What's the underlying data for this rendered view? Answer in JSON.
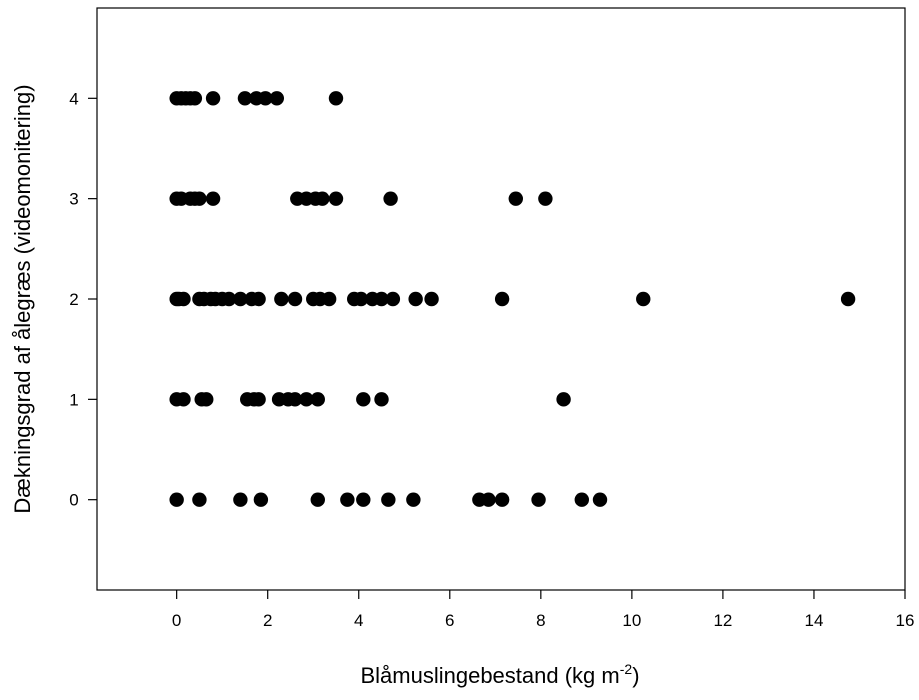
{
  "chart_data": {
    "type": "scatter",
    "title": "",
    "xlabel": "Blåmuslingebestand (kg m",
    "xlabel_sup": "-2",
    "xlabel_suffix": ")",
    "ylabel": "Dækningsgrad af ålegræs (videomonitering)",
    "xlim": [
      -1.75,
      16
    ],
    "ylim": [
      -0.9,
      4.9
    ],
    "xticks": [
      0,
      2,
      4,
      6,
      8,
      10,
      12,
      14,
      16
    ],
    "yticks": [
      0,
      1,
      2,
      3,
      4
    ],
    "grid": false,
    "legend": "none",
    "marker_color": "#000000",
    "series": [
      {
        "points": [
          [
            0.0,
            4
          ],
          [
            0.1,
            4
          ],
          [
            0.2,
            4
          ],
          [
            0.3,
            4
          ],
          [
            0.4,
            4
          ],
          [
            0.8,
            4
          ],
          [
            1.5,
            4
          ],
          [
            1.75,
            4
          ],
          [
            1.95,
            4
          ],
          [
            2.2,
            4
          ],
          [
            3.5,
            4
          ],
          [
            0.0,
            3
          ],
          [
            0.1,
            3
          ],
          [
            0.3,
            3
          ],
          [
            0.4,
            3
          ],
          [
            0.5,
            3
          ],
          [
            0.8,
            3
          ],
          [
            2.65,
            3
          ],
          [
            2.85,
            3
          ],
          [
            3.05,
            3
          ],
          [
            3.2,
            3
          ],
          [
            3.5,
            3
          ],
          [
            4.7,
            3
          ],
          [
            7.45,
            3
          ],
          [
            8.1,
            3
          ],
          [
            0.0,
            2
          ],
          [
            0.05,
            2
          ],
          [
            0.15,
            2
          ],
          [
            0.5,
            2
          ],
          [
            0.6,
            2
          ],
          [
            0.75,
            2
          ],
          [
            0.85,
            2
          ],
          [
            1.0,
            2
          ],
          [
            1.15,
            2
          ],
          [
            1.4,
            2
          ],
          [
            1.65,
            2
          ],
          [
            1.8,
            2
          ],
          [
            2.3,
            2
          ],
          [
            2.6,
            2
          ],
          [
            3.0,
            2
          ],
          [
            3.15,
            2
          ],
          [
            3.35,
            2
          ],
          [
            3.9,
            2
          ],
          [
            4.05,
            2
          ],
          [
            4.3,
            2
          ],
          [
            4.5,
            2
          ],
          [
            4.75,
            2
          ],
          [
            5.25,
            2
          ],
          [
            5.6,
            2
          ],
          [
            7.15,
            2
          ],
          [
            10.25,
            2
          ],
          [
            14.75,
            2
          ],
          [
            0.0,
            1
          ],
          [
            0.15,
            1
          ],
          [
            0.55,
            1
          ],
          [
            0.65,
            1
          ],
          [
            1.55,
            1
          ],
          [
            1.7,
            1
          ],
          [
            1.8,
            1
          ],
          [
            2.25,
            1
          ],
          [
            2.45,
            1
          ],
          [
            2.6,
            1
          ],
          [
            2.85,
            1
          ],
          [
            3.1,
            1
          ],
          [
            4.1,
            1
          ],
          [
            4.5,
            1
          ],
          [
            8.5,
            1
          ],
          [
            0.0,
            0
          ],
          [
            0.5,
            0
          ],
          [
            1.4,
            0
          ],
          [
            1.85,
            0
          ],
          [
            3.1,
            0
          ],
          [
            3.75,
            0
          ],
          [
            4.1,
            0
          ],
          [
            4.65,
            0
          ],
          [
            5.2,
            0
          ],
          [
            6.65,
            0
          ],
          [
            6.85,
            0
          ],
          [
            7.15,
            0
          ],
          [
            7.95,
            0
          ],
          [
            8.9,
            0
          ],
          [
            9.3,
            0
          ]
        ]
      }
    ]
  }
}
